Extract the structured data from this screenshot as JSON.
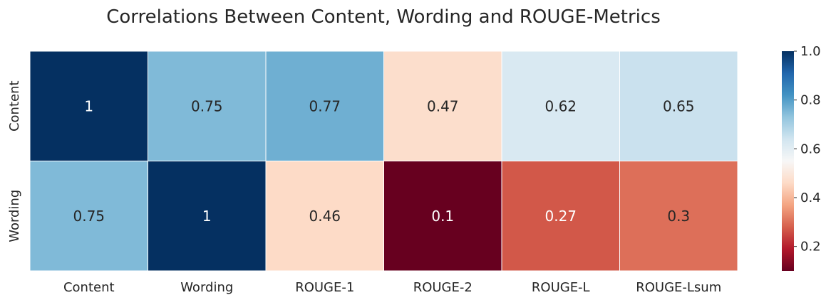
{
  "chart_data": {
    "type": "heatmap",
    "title": "Correlations Between Content, Wording and ROUGE-Metrics",
    "x_categories": [
      "Content",
      "Wording",
      "ROUGE-1",
      "ROUGE-2",
      "ROUGE-L",
      "ROUGE-Lsum"
    ],
    "y_categories": [
      "Content",
      "Wording"
    ],
    "values": [
      [
        1,
        0.75,
        0.77,
        0.47,
        0.62,
        0.65
      ],
      [
        0.75,
        1,
        0.46,
        0.1,
        0.27,
        0.3
      ]
    ],
    "colormap": "RdBu",
    "color_range": [
      0.1,
      1.0
    ],
    "colorbar_ticks": [
      0.2,
      0.4,
      0.6,
      0.8,
      1.0
    ],
    "colorbar_tick_labels": [
      "0.2",
      "0.4",
      "0.6",
      "0.8",
      "1.0"
    ],
    "colorbar_placement": "right",
    "colors": [
      "#67001f",
      "#b2182b",
      "#d6604d",
      "#f4a582",
      "#fddbc7",
      "#f7f7f7",
      "#d1e5f0",
      "#92c5de",
      "#4393c3",
      "#2166ac",
      "#053061"
    ]
  }
}
